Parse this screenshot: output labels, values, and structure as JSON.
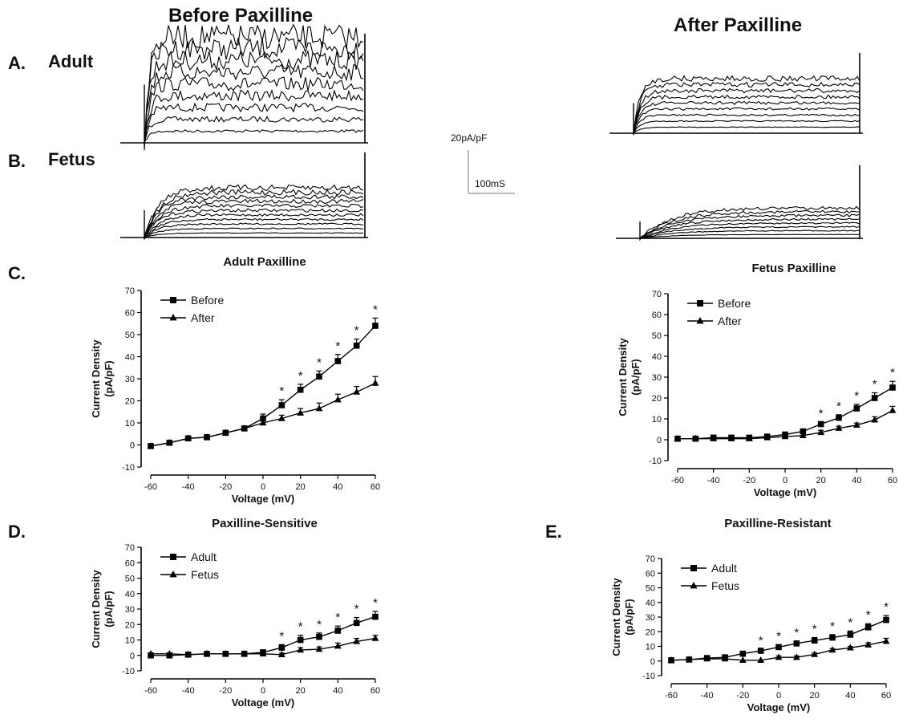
{
  "headers": {
    "before": "Before Paxilline",
    "after": "After Paxilline"
  },
  "panel_labels": {
    "a": "A.",
    "a_name": "Adult",
    "b": "B.",
    "b_name": "Fetus",
    "c": "C.",
    "d": "D.",
    "e": "E."
  },
  "scale_bar": {
    "y_label": "20pA/pF",
    "x_label": "100mS"
  },
  "chart_data": [
    {
      "id": "C-left",
      "type": "line",
      "title": "Adult Paxilline",
      "xlabel": "Voltage (mV)",
      "ylabel": "Current Density\n(pA/pF)",
      "xlim": [
        -60,
        60
      ],
      "ylim": [
        -10,
        70
      ],
      "x_ticks": [
        -60,
        -40,
        -20,
        0,
        20,
        40,
        60
      ],
      "y_ticks": [
        -10,
        0,
        10,
        20,
        30,
        40,
        50,
        60,
        70
      ],
      "x": [
        -60,
        -50,
        -40,
        -30,
        -20,
        -10,
        0,
        10,
        20,
        30,
        40,
        50,
        60
      ],
      "series": [
        {
          "name": "Before",
          "marker": "square",
          "values": [
            -0.5,
            1,
            3,
            3.5,
            5.5,
            7.5,
            12,
            18,
            25,
            31,
            38,
            45,
            54
          ],
          "errors": [
            0.5,
            0.5,
            1,
            1,
            1,
            1,
            2,
            2.5,
            2.5,
            2.5,
            3,
            3,
            3.5
          ]
        },
        {
          "name": "After",
          "marker": "triangle",
          "values": [
            -0.5,
            1,
            3,
            3.5,
            5.5,
            7.5,
            10,
            12,
            14.5,
            16.5,
            20.5,
            24,
            28
          ],
          "errors": [
            0.5,
            0.5,
            1,
            1,
            1,
            1,
            1.5,
            1.5,
            2,
            2.5,
            2.5,
            2.5,
            3
          ]
        }
      ],
      "annotations": [
        "*",
        "*",
        "*",
        "*",
        "*",
        "*"
      ],
      "annotation_x": [
        10,
        20,
        30,
        40,
        50,
        60
      ],
      "legend": "top-left"
    },
    {
      "id": "C-right",
      "type": "line",
      "title": "Fetus Paxilline",
      "xlabel": "Voltage (mV)",
      "ylabel": "Current Density\n(pA/pF)",
      "xlim": [
        -60,
        60
      ],
      "ylim": [
        -10,
        70
      ],
      "x_ticks": [
        -60,
        -40,
        -20,
        0,
        20,
        40,
        60
      ],
      "y_ticks": [
        -10,
        0,
        10,
        20,
        30,
        40,
        50,
        60,
        70
      ],
      "x": [
        -60,
        -50,
        -40,
        -30,
        -20,
        -10,
        0,
        10,
        20,
        30,
        40,
        50,
        60
      ],
      "series": [
        {
          "name": "Before",
          "marker": "square",
          "values": [
            0.5,
            0.5,
            1,
            1,
            1,
            1.5,
            2.5,
            4,
            7.5,
            10.5,
            15,
            20,
            25
          ],
          "errors": [
            0.5,
            0.5,
            0.5,
            0.5,
            0.5,
            0.5,
            1,
            1,
            1,
            1.5,
            2,
            2.5,
            3
          ]
        },
        {
          "name": "After",
          "marker": "triangle",
          "values": [
            0.5,
            0.5,
            0.5,
            0.5,
            0.5,
            1,
            1.5,
            2,
            3.5,
            5.5,
            7,
            9.5,
            14
          ],
          "errors": [
            0.5,
            0.5,
            0.5,
            0.5,
            0.5,
            0.5,
            0.5,
            1,
            1,
            1,
            1,
            1.5,
            2
          ]
        }
      ],
      "annotations": [
        "*",
        "*",
        "*",
        "*",
        "*"
      ],
      "annotation_x": [
        20,
        30,
        40,
        50,
        60
      ],
      "legend": "top-left"
    },
    {
      "id": "D",
      "type": "line",
      "title": "Paxilline-Sensitive",
      "xlabel": "Voltage (mV)",
      "ylabel": "Current Density\n(pA/pF)",
      "xlim": [
        -60,
        60
      ],
      "ylim": [
        -10,
        70
      ],
      "x_ticks": [
        -60,
        -40,
        -20,
        0,
        20,
        40,
        60
      ],
      "y_ticks": [
        -10,
        0,
        10,
        20,
        30,
        40,
        50,
        60,
        70
      ],
      "x": [
        -60,
        -50,
        -40,
        -30,
        -20,
        -10,
        0,
        10,
        20,
        30,
        40,
        50,
        60
      ],
      "series": [
        {
          "name": "Adult",
          "marker": "square",
          "values": [
            0,
            0,
            0.5,
            1,
            1,
            1,
            2,
            5,
            10,
            12,
            16,
            21,
            25
          ],
          "errors": [
            0.5,
            0.5,
            0.5,
            0.5,
            0.5,
            0.5,
            1.5,
            2,
            3,
            2.5,
            3,
            3.5,
            3.5
          ]
        },
        {
          "name": "Fetus",
          "marker": "triangle",
          "values": [
            1,
            1,
            0.5,
            1,
            1,
            1,
            1,
            0.5,
            3.5,
            4,
            6,
            9,
            11
          ],
          "errors": [
            0.5,
            0.5,
            0.5,
            0.5,
            0.5,
            0.5,
            1,
            1,
            1.5,
            1.5,
            2,
            2,
            2
          ]
        }
      ],
      "annotations": [
        "*",
        "*",
        "*",
        "*",
        "*",
        "*"
      ],
      "annotation_x": [
        10,
        20,
        30,
        40,
        50,
        60
      ],
      "legend": "top-left"
    },
    {
      "id": "E",
      "type": "line",
      "title": "Paxilline-Resistant",
      "xlabel": "Voltage (mV)",
      "ylabel": "Current Density\n(pA/pF)",
      "xlim": [
        -60,
        60
      ],
      "ylim": [
        -10,
        70
      ],
      "x_ticks": [
        -60,
        -40,
        -20,
        0,
        20,
        40,
        60
      ],
      "y_ticks": [
        -10,
        0,
        10,
        20,
        30,
        40,
        50,
        60,
        70
      ],
      "x": [
        -60,
        -50,
        -40,
        -30,
        -20,
        -10,
        0,
        10,
        20,
        30,
        40,
        50,
        60
      ],
      "series": [
        {
          "name": "Adult",
          "marker": "square",
          "values": [
            0.5,
            1,
            2,
            2.5,
            5,
            7,
            9.5,
            12,
            14,
            16,
            18,
            23,
            28
          ],
          "errors": [
            0.5,
            0.5,
            0.5,
            1,
            1,
            1,
            1.5,
            1.5,
            2,
            2,
            2.5,
            2.5,
            3
          ]
        },
        {
          "name": "Fetus",
          "marker": "triangle",
          "values": [
            0.5,
            1,
            1.5,
            1.5,
            0.5,
            0.5,
            2.5,
            2.5,
            4.5,
            7.5,
            9,
            11,
            13.5
          ],
          "errors": [
            0.5,
            0.5,
            0.5,
            0.5,
            0.5,
            0.5,
            1,
            1,
            1,
            1,
            1,
            1.5,
            2
          ]
        }
      ],
      "annotations": [
        "*",
        "*",
        "*",
        "*",
        "*",
        "*",
        "*",
        "*"
      ],
      "annotation_x": [
        -10,
        0,
        10,
        20,
        30,
        40,
        50,
        60
      ],
      "legend": "top-left"
    }
  ]
}
